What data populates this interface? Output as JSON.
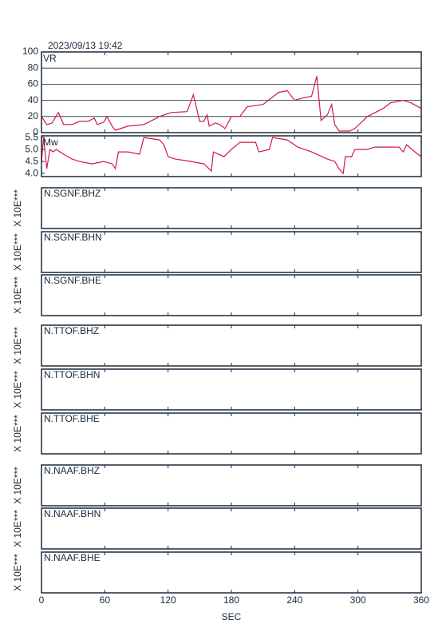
{
  "timestamp": "2023/09/13  19:42",
  "time_axis": {
    "xlabel": "SEC",
    "xlim": [
      0,
      360
    ],
    "xticks": [
      0,
      60,
      120,
      180,
      240,
      300,
      360
    ]
  },
  "chart_data": [
    {
      "type": "line",
      "label": "VR",
      "color": "#d01848",
      "ylim": [
        0,
        100
      ],
      "yticks": [
        0,
        20,
        40,
        60,
        80,
        100
      ],
      "grid": true,
      "x": [
        0,
        5,
        10,
        16,
        21,
        29,
        36,
        44,
        50,
        53,
        59,
        62,
        67,
        70,
        82,
        97,
        112,
        123,
        138,
        142,
        144,
        150,
        154,
        157,
        159,
        165,
        169,
        174,
        180,
        188,
        195,
        210,
        225,
        233,
        240,
        248,
        256,
        261,
        265,
        271,
        275,
        278,
        282,
        292,
        297,
        309,
        324,
        331,
        343,
        350,
        360
      ],
      "values": [
        20,
        10,
        12,
        25,
        10,
        10,
        14,
        14,
        18,
        10,
        13,
        20,
        8,
        3,
        8,
        10,
        20,
        25,
        26,
        40,
        47,
        14,
        14,
        22,
        8,
        12,
        10,
        5,
        20,
        20,
        32,
        35,
        50,
        52,
        40,
        43,
        45,
        70,
        15,
        22,
        35,
        10,
        2,
        2,
        5,
        20,
        30,
        37,
        40,
        37,
        30
      ]
    },
    {
      "type": "line",
      "label": "Mw",
      "color": "#d01848",
      "ylim": [
        3.87,
        5.57
      ],
      "yticks": [
        {
          "value": 4,
          "label": "4.0"
        },
        4.5,
        {
          "value": 5,
          "label": "5.0"
        },
        5.5
      ],
      "grid": false,
      "x": [
        0,
        2,
        5,
        8,
        11,
        14,
        21,
        29,
        36,
        48,
        59,
        67,
        70,
        73,
        82,
        93,
        97,
        112,
        116,
        120,
        127,
        142,
        154,
        161,
        163,
        173,
        180,
        188,
        203,
        206,
        216,
        219,
        233,
        243,
        256,
        271,
        278,
        282,
        286,
        288,
        294,
        297,
        309,
        316,
        339,
        343,
        346,
        354,
        360
      ],
      "values": [
        4.5,
        5.5,
        4.2,
        5.0,
        4.9,
        5.0,
        4.8,
        4.6,
        4.5,
        4.4,
        4.5,
        4.4,
        4.2,
        4.9,
        4.9,
        4.8,
        5.5,
        5.4,
        5.2,
        4.7,
        4.6,
        4.5,
        4.4,
        4.1,
        4.9,
        4.7,
        5.0,
        5.3,
        5.3,
        4.9,
        5.0,
        5.5,
        5.4,
        5.1,
        4.9,
        4.6,
        4.5,
        4.2,
        4.0,
        4.7,
        4.7,
        5.0,
        5.0,
        5.1,
        5.1,
        4.9,
        5.2,
        4.9,
        4.7
      ]
    }
  ],
  "stations": [
    {
      "label": "N.SGNF.BHZ",
      "ylabel": "X 10E***"
    },
    {
      "label": "N.SGNF.BHN",
      "ylabel": "X 10E***"
    },
    {
      "label": "N.SGNF.BHE",
      "ylabel": "X 10E***"
    },
    {
      "label": "N.TTOF.BHZ",
      "ylabel": "X 10E***"
    },
    {
      "label": "N.TTOF.BHN",
      "ylabel": "X 10E***"
    },
    {
      "label": "N.TTOF.BHE",
      "ylabel": "X 10E***"
    },
    {
      "label": "N.NAAF.BHZ",
      "ylabel": "X 10E***"
    },
    {
      "label": "N.NAAF.BHN",
      "ylabel": "X 10E***"
    },
    {
      "label": "N.NAAF.BHE",
      "ylabel": "X 10E***"
    }
  ]
}
